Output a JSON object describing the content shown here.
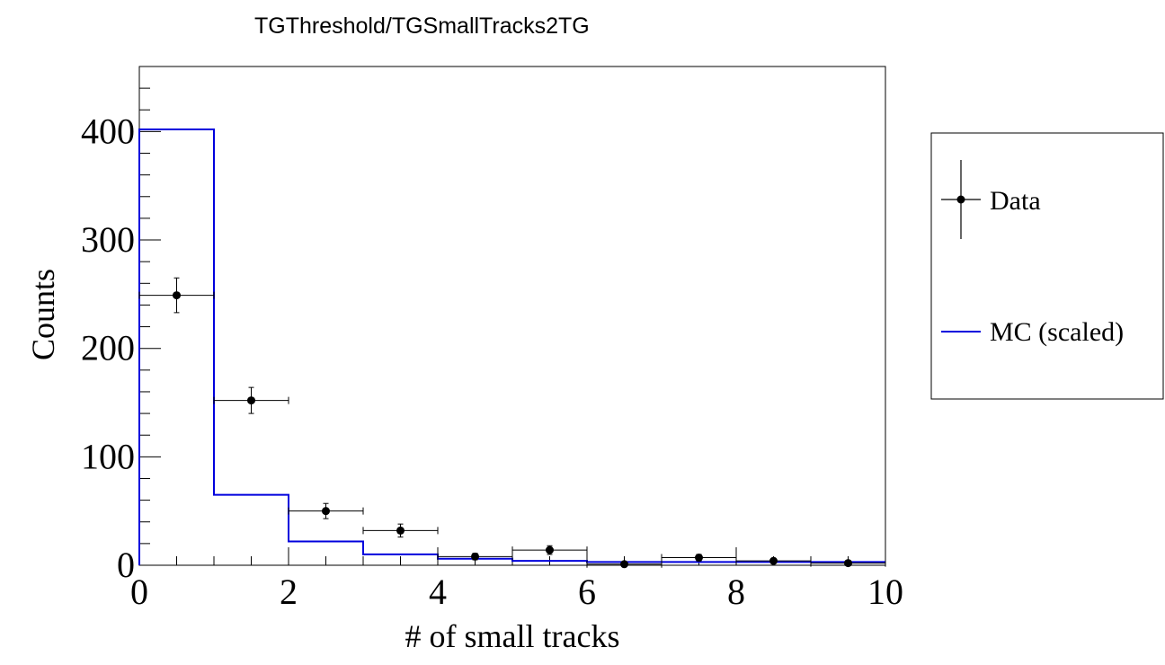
{
  "chart_data": {
    "type": "histogram",
    "title": "TGThreshold/TGSmallTracks2TG",
    "xlabel": "# of small tracks",
    "ylabel": "Counts",
    "xlim": [
      0,
      10
    ],
    "ylim": [
      0,
      460
    ],
    "x_ticks": [
      "0",
      "2",
      "4",
      "6",
      "8",
      "10"
    ],
    "y_ticks": [
      "0",
      "100",
      "200",
      "300",
      "400"
    ],
    "bin_edges": [
      0,
      1,
      2,
      3,
      4,
      5,
      6,
      7,
      8,
      9,
      10
    ],
    "series": [
      {
        "name": "Data",
        "style": "points",
        "color": "#000000",
        "x": [
          0.5,
          1.5,
          2.5,
          3.5,
          4.5,
          5.5,
          6.5,
          7.5,
          8.5,
          9.5
        ],
        "values": [
          249,
          152,
          50,
          32,
          8,
          14,
          1,
          7,
          4,
          2
        ],
        "errors": [
          16,
          12,
          7,
          6,
          3,
          4,
          1,
          3,
          2,
          1
        ]
      },
      {
        "name": "MC (scaled)",
        "style": "step",
        "color": "#0000dd",
        "values": [
          402,
          65,
          22,
          10,
          6,
          4,
          3,
          3,
          3,
          3
        ]
      }
    ],
    "legend": {
      "position": "right",
      "entries": [
        "Data",
        "MC (scaled)"
      ]
    }
  }
}
